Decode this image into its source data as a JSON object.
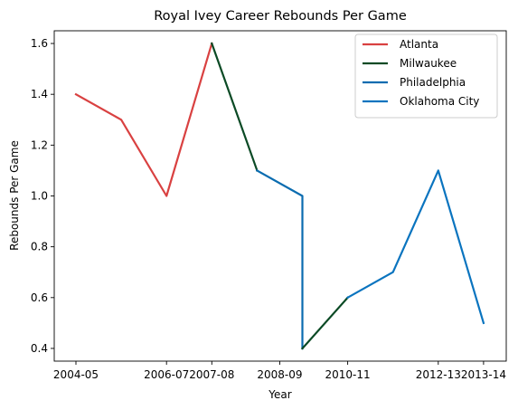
{
  "chart_data": {
    "type": "line",
    "title": "Royal Ivey Career Rebounds Per Game",
    "xlabel": "Year",
    "ylabel": "Rebounds Per Game",
    "x_ticks": [
      "2004-05",
      "2006-07",
      "2007-08",
      "2008-09",
      "2010-11",
      "2012-13",
      "2013-14"
    ],
    "y_ticks": [
      0.4,
      0.6,
      0.8,
      1.0,
      1.2,
      1.4,
      1.6
    ],
    "y_tick_labels": [
      "0.4",
      "0.6",
      "0.8",
      "1.0",
      "1.2",
      "1.4",
      "1.6"
    ],
    "ylim": [
      0.35,
      1.65
    ],
    "legend_position": "top-right",
    "grid": false,
    "series": [
      {
        "name": "Atlanta",
        "color": "#d94141",
        "x": [
          0,
          1,
          2,
          3
        ],
        "y": [
          1.4,
          1.3,
          1.0,
          1.6
        ]
      },
      {
        "name": "Milwaukee",
        "color": "#0b4a25",
        "x": [
          3,
          4
        ],
        "y": [
          1.6,
          1.1
        ]
      },
      {
        "name": "Philadelphia",
        "color": "#0a6cb0",
        "x": [
          4,
          5,
          5
        ],
        "y": [
          1.1,
          1.0,
          0.4
        ]
      },
      {
        "name": "Milwaukee",
        "color": "#0b4a25",
        "x": [
          5,
          6
        ],
        "y": [
          0.4,
          0.6
        ],
        "legend": false
      },
      {
        "name": "Oklahoma City",
        "color": "#0a74bf",
        "x": [
          6,
          7,
          8,
          9
        ],
        "y": [
          0.6,
          0.7,
          1.1,
          0.5
        ]
      }
    ],
    "x_tick_positions": [
      0,
      2,
      3,
      4.5,
      6,
      8,
      9
    ]
  }
}
